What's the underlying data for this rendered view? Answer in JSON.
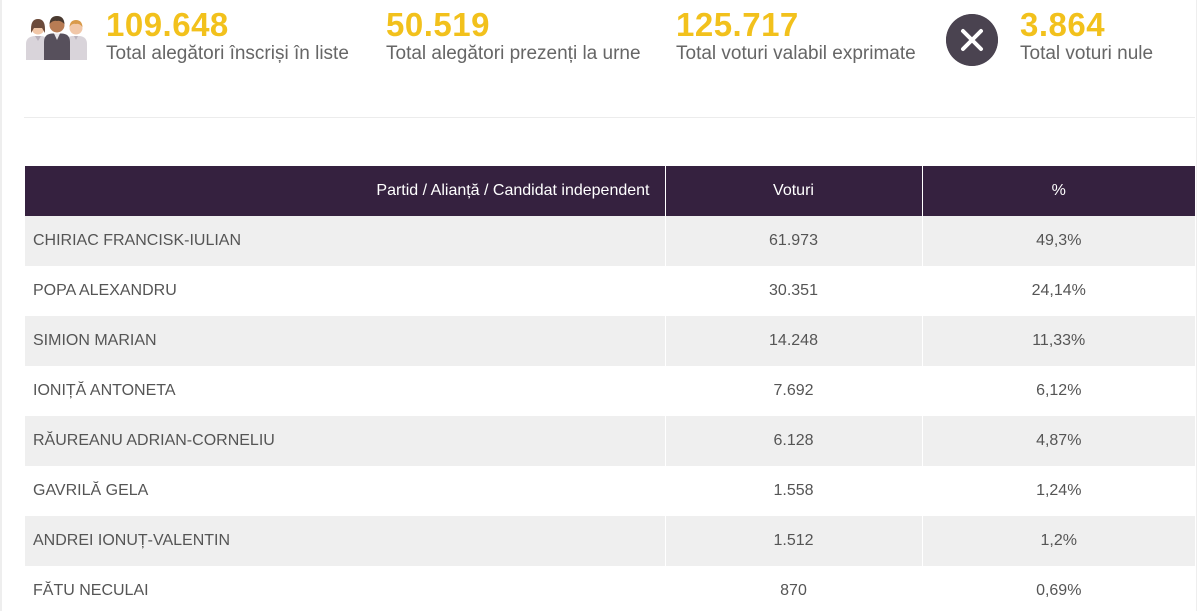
{
  "stats": {
    "registered": {
      "value": "109.648",
      "label": "Total alegători înscriși în liste"
    },
    "present": {
      "value": "50.519",
      "label": "Total alegători prezenți la urne"
    },
    "valid": {
      "value": "125.717",
      "label": "Total voturi valabil exprimate"
    },
    "null_votes": {
      "value": "3.864",
      "label": "Total voturi nule"
    }
  },
  "icons": {
    "people": "people-group-icon",
    "null": "close-circle-icon"
  },
  "colors": {
    "accent": "#f2c11c",
    "header_bg": "#35213f",
    "row_alt": "#efefef",
    "icon_bg": "#4a4350"
  },
  "table": {
    "headers": {
      "party": "Partid / Alianță / Candidat independent",
      "votes": "Voturi",
      "percent": "%"
    },
    "rows": [
      {
        "name": "CHIRIAC FRANCISK-IULIAN",
        "votes": "61.973",
        "percent": "49,3%"
      },
      {
        "name": "POPA ALEXANDRU",
        "votes": "30.351",
        "percent": "24,14%"
      },
      {
        "name": "SIMION MARIAN",
        "votes": "14.248",
        "percent": "11,33%"
      },
      {
        "name": "IONIȚĂ ANTONETA",
        "votes": "7.692",
        "percent": "6,12%"
      },
      {
        "name": "RĂUREANU ADRIAN-CORNELIU",
        "votes": "6.128",
        "percent": "4,87%"
      },
      {
        "name": "GAVRILĂ GELA",
        "votes": "1.558",
        "percent": "1,24%"
      },
      {
        "name": "ANDREI IONUȚ-VALENTIN",
        "votes": "1.512",
        "percent": "1,2%"
      },
      {
        "name": "FĂTU NECULAI",
        "votes": "870",
        "percent": "0,69%"
      }
    ]
  }
}
